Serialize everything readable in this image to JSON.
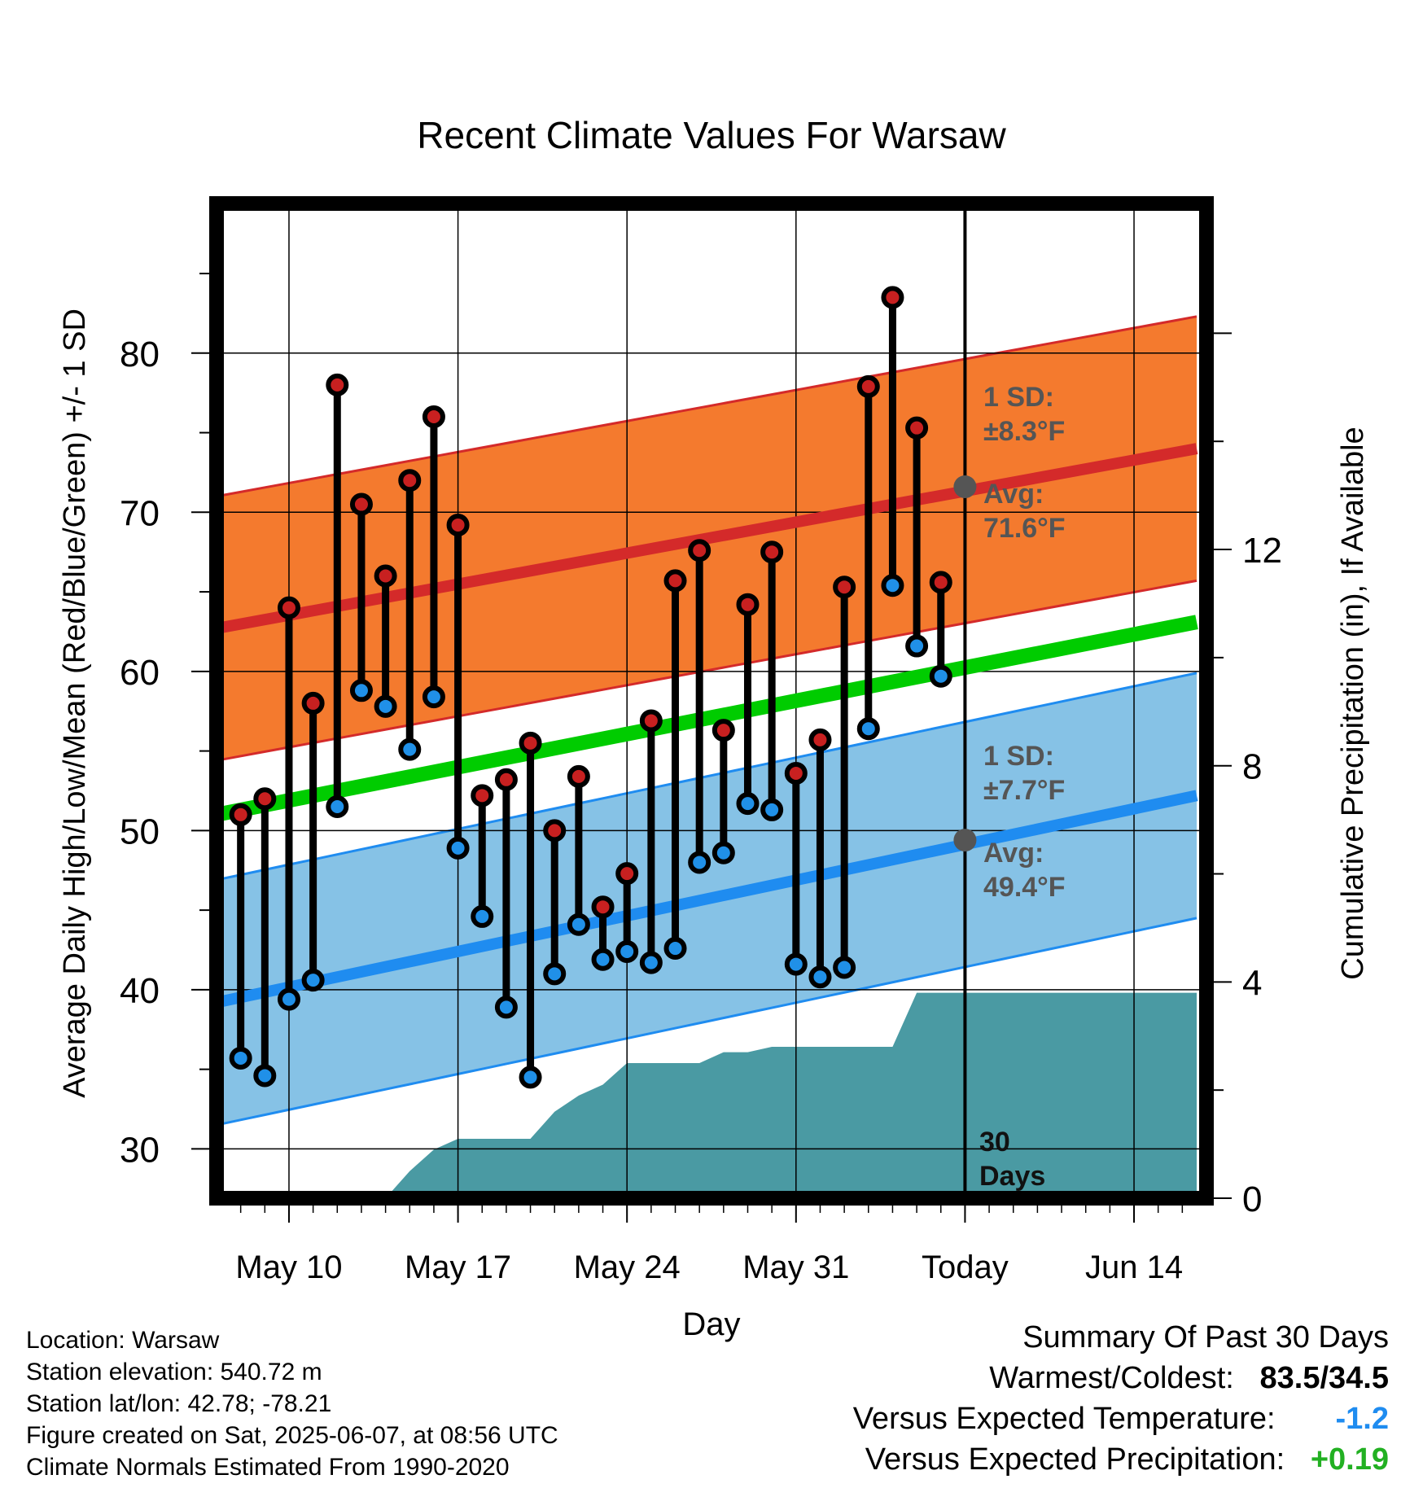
{
  "chart_data": {
    "type": "line",
    "title": "Recent Climate Values For Warsaw",
    "xlabel": "Day",
    "ylabel": "Average Daily High/Low/Mean (Red/Blue/Green) +/- 1 SD",
    "y2label": "Cumulative Precipitation (in), If Available",
    "ylim": [
      26.9,
      89.4
    ],
    "y_ticks": [
      30,
      40,
      50,
      60,
      70,
      80
    ],
    "y2lim": [
      0,
      18.4
    ],
    "y2_ticks": [
      0,
      4,
      8,
      12
    ],
    "x_ticks": [
      "May 10",
      "May 17",
      "May 24",
      "May 31",
      "Today",
      "Jun 14"
    ],
    "x_range_days": [
      "2025-05-07",
      "2025-06-17"
    ],
    "today": "2025-06-07",
    "grid": true,
    "dates": [
      "2025-05-08",
      "2025-05-09",
      "2025-05-10",
      "2025-05-11",
      "2025-05-12",
      "2025-05-13",
      "2025-05-14",
      "2025-05-15",
      "2025-05-16",
      "2025-05-17",
      "2025-05-18",
      "2025-05-19",
      "2025-05-20",
      "2025-05-21",
      "2025-05-22",
      "2025-05-23",
      "2025-05-24",
      "2025-05-25",
      "2025-05-26",
      "2025-05-27",
      "2025-05-28",
      "2025-05-29",
      "2025-05-30",
      "2025-05-31",
      "2025-06-01",
      "2025-06-02",
      "2025-06-03",
      "2025-06-04",
      "2025-06-05",
      "2025-06-06"
    ],
    "highs": [
      51.0,
      52.0,
      64.0,
      58.0,
      78.0,
      70.5,
      66.0,
      72.0,
      76.0,
      69.2,
      52.2,
      53.2,
      55.5,
      50.0,
      53.4,
      45.2,
      47.3,
      56.9,
      65.7,
      67.6,
      56.3,
      64.2,
      67.5,
      53.6,
      55.7,
      65.3,
      77.9,
      83.5,
      75.3,
      65.6
    ],
    "lows": [
      35.7,
      34.6,
      39.4,
      40.6,
      51.5,
      58.8,
      57.8,
      55.1,
      58.4,
      48.9,
      44.6,
      38.9,
      34.5,
      41.0,
      44.1,
      41.9,
      42.4,
      41.7,
      42.6,
      48.0,
      48.6,
      51.7,
      51.3,
      41.6,
      40.8,
      41.4,
      56.4,
      65.4,
      61.6,
      59.7
    ],
    "normal_high": {
      "start": 62.7,
      "end": 74.0,
      "sd": 8.3
    },
    "normal_low": {
      "start": 39.2,
      "end": 52.2,
      "sd": 7.7
    },
    "normal_mean": {
      "start": 51.0,
      "end": 63.1
    },
    "precip_cumulative": {
      "dates": [
        "2025-05-13",
        "2025-05-14",
        "2025-05-15",
        "2025-05-16",
        "2025-05-17",
        "2025-05-18",
        "2025-05-19",
        "2025-05-20",
        "2025-05-21",
        "2025-05-22",
        "2025-05-23",
        "2025-05-24",
        "2025-05-25",
        "2025-05-26",
        "2025-05-27",
        "2025-05-28",
        "2025-05-29",
        "2025-05-30",
        "2025-05-31",
        "2025-06-01",
        "2025-06-02",
        "2025-06-03",
        "2025-06-04",
        "2025-06-05",
        "2025-06-06",
        "2025-06-17"
      ],
      "values": [
        0,
        0,
        0.5,
        0.9,
        1.1,
        1.1,
        1.1,
        1.1,
        1.6,
        1.9,
        2.1,
        2.5,
        2.5,
        2.5,
        2.5,
        2.7,
        2.7,
        2.8,
        2.8,
        2.8,
        2.8,
        2.8,
        2.8,
        3.8,
        3.8,
        3.8
      ]
    },
    "annotations": {
      "high_sd_label": "1 SD:",
      "high_sd_value": "±8.3°F",
      "high_avg_label": "Avg:",
      "high_avg_value": "71.6°F",
      "high_avg": 71.6,
      "low_sd_label": "1 SD:",
      "low_sd_value": "±7.7°F",
      "low_avg_label": "Avg:",
      "low_avg_value": "49.4°F",
      "low_avg": 49.4,
      "days_label_1": "30",
      "days_label_2": "Days"
    },
    "colors": {
      "high_band": "#f47a2e",
      "high_line": "#d42a2a",
      "low_band": "#86c2e6",
      "low_line": "#1f8cf0",
      "mean_line": "#00cc00",
      "precip": "#4a9aa3",
      "high_dot": "#c82020",
      "low_dot": "#2090e8",
      "annotation": "#555555"
    }
  },
  "footer": {
    "location": "Location: Warsaw",
    "elevation": "Station elevation: 540.72 m",
    "latlon": "Station lat/lon: 42.78; -78.21",
    "created": "Figure created on Sat, 2025-06-07, at 08:56 UTC",
    "normals": "Climate Normals Estimated From 1990-2020"
  },
  "summary": {
    "title": "Summary Of Past 30 Days",
    "warm_cold_label": "Warmest/Coldest:",
    "warm_cold_value": "83.5/34.5",
    "temp_label": "Versus Expected Temperature:",
    "temp_value": "-1.2",
    "precip_label": "Versus Expected Precipitation:",
    "precip_value": "+0.19",
    "temp_color": "#1f8cf0",
    "precip_color": "#22b022"
  }
}
